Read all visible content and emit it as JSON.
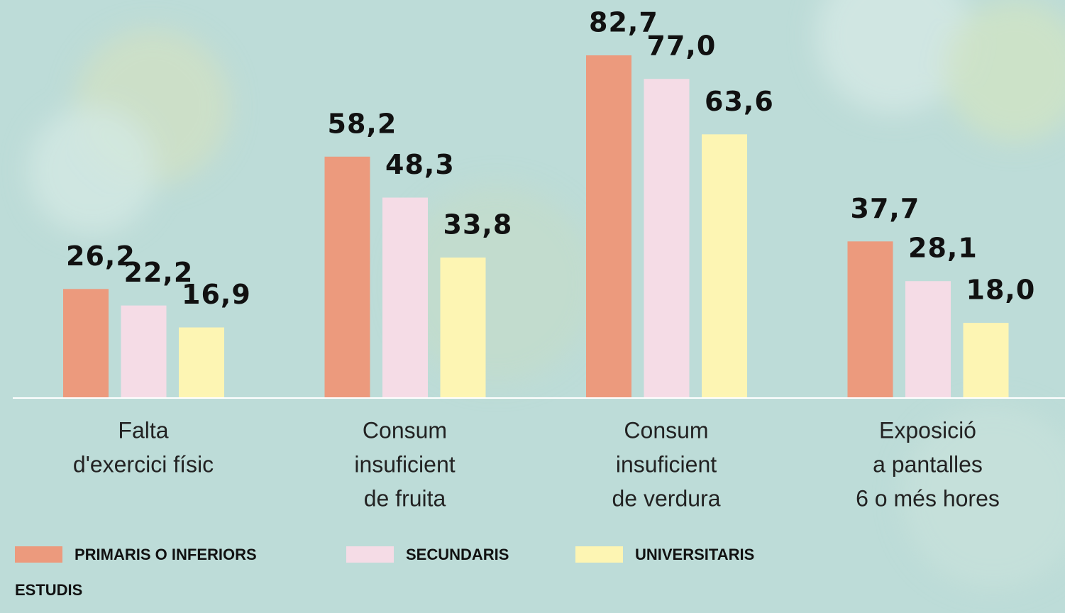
{
  "chart_data": {
    "type": "bar",
    "categories": [
      [
        "Falta",
        "d'exercici físic"
      ],
      [
        "Consum",
        "insuficient",
        "de fruita"
      ],
      [
        "Consum",
        "insuficient",
        "de verdura"
      ],
      [
        "Exposició",
        "a pantalles",
        "6 o més hores"
      ]
    ],
    "series": [
      {
        "name": "PRIMARIS O INFERIORS",
        "color": "#ec9a7d",
        "values": [
          26.2,
          58.2,
          82.7,
          37.7
        ],
        "value_labels": [
          "26,2",
          "58,2",
          "82,7",
          "37,7"
        ]
      },
      {
        "name": "SECUNDARIS",
        "color": "#f5dce6",
        "values": [
          22.2,
          48.3,
          77.0,
          28.1
        ],
        "value_labels": [
          "22,2",
          "48,3",
          "77,0",
          "28,1"
        ]
      },
      {
        "name": "UNIVERSITARIS",
        "color": "#fdf5b3",
        "values": [
          16.9,
          33.8,
          63.6,
          18.0
        ],
        "value_labels": [
          "16,9",
          "33,8",
          "63,6",
          "18,0"
        ]
      }
    ],
    "legend_title": "ESTUDIS"
  }
}
